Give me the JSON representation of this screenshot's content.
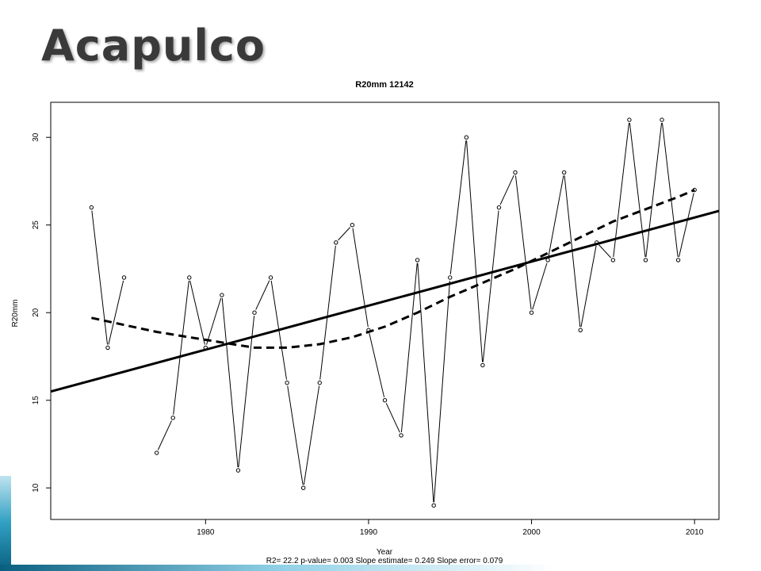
{
  "slide": {
    "title": "Acapulco"
  },
  "chart_data": {
    "type": "line",
    "title": "R20mm   12142",
    "xlabel": "Year",
    "ylabel": "R20mm",
    "footer": "R2= 22.2  p-value= 0.003  Slope estimate= 0.249  Slope error= 0.079",
    "xlim": [
      1970.5,
      2011.5
    ],
    "ylim": [
      8.2,
      32.0
    ],
    "x_ticks": [
      1980,
      1990,
      2000,
      2010
    ],
    "y_ticks": [
      10,
      15,
      20,
      25,
      30
    ],
    "grid": false,
    "legend": "none",
    "series": [
      {
        "style": "points-and-lines",
        "x": [
          1973,
          1974,
          1975,
          1976,
          1977,
          1978,
          1979,
          1980,
          1981,
          1982,
          1983,
          1984,
          1985,
          1986,
          1987,
          1988,
          1989,
          1990,
          1991,
          1992,
          1993,
          1994,
          1995,
          1996,
          1997,
          1998,
          1999,
          2000,
          2001,
          2002,
          2003,
          2004,
          2005,
          2006,
          2007,
          2008,
          2009,
          2010
        ],
        "values": [
          26,
          18,
          22,
          null,
          12,
          14,
          22,
          18,
          21,
          11,
          20,
          22,
          16,
          10,
          16,
          24,
          25,
          19,
          15,
          13,
          23,
          9,
          22,
          30,
          17,
          26,
          28,
          20,
          23,
          28,
          19,
          24,
          23,
          31,
          23,
          31,
          23,
          27
        ]
      },
      {
        "style": "solid-trend",
        "x": [
          1970.5,
          2011.5
        ],
        "values": [
          15.5,
          25.8
        ]
      },
      {
        "style": "dashed-smooth",
        "x": [
          1973,
          1975,
          1977,
          1979,
          1981,
          1983,
          1985,
          1987,
          1989,
          1991,
          1993,
          1995,
          1997,
          1999,
          2001,
          2003,
          2005,
          2007,
          2009,
          2010
        ],
        "values": [
          19.7,
          19.3,
          18.9,
          18.6,
          18.3,
          18.0,
          18.0,
          18.2,
          18.6,
          19.2,
          20.0,
          20.9,
          21.7,
          22.5,
          23.4,
          24.3,
          25.2,
          25.9,
          26.6,
          27.0
        ]
      }
    ],
    "colors": {
      "line": "#000000",
      "point_fill": "#ffffff"
    }
  }
}
